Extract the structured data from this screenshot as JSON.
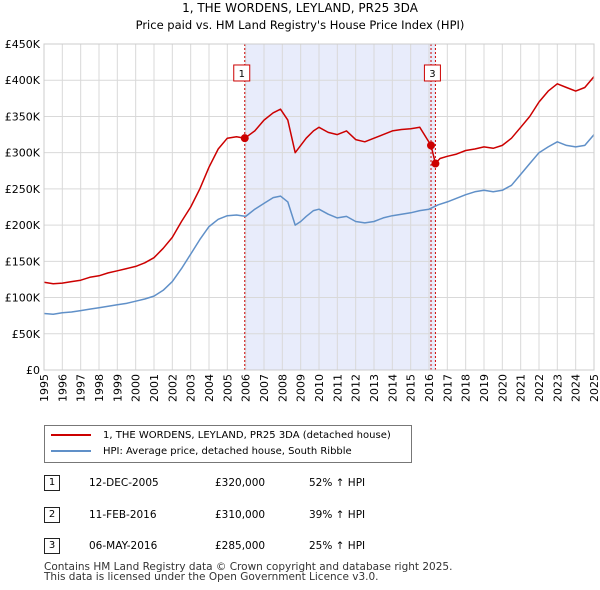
{
  "chart_data": {
    "type": "line",
    "title": "1, THE WORDENS, LEYLAND, PR25 3DA",
    "subtitle": "Price paid vs. HM Land Registry's House Price Index (HPI)",
    "xlabel": "",
    "ylabel": "",
    "xlim": [
      1995,
      2025
    ],
    "ylim": [
      0,
      450000
    ],
    "x_ticks": [
      "1995",
      "1996",
      "1997",
      "1998",
      "1999",
      "2000",
      "2001",
      "2002",
      "2003",
      "2004",
      "2005",
      "2006",
      "2007",
      "2008",
      "2009",
      "2010",
      "2011",
      "2012",
      "2013",
      "2014",
      "2015",
      "2016",
      "2017",
      "2018",
      "2019",
      "2020",
      "2021",
      "2022",
      "2023",
      "2024",
      "2025"
    ],
    "y_ticks": [
      {
        "value": 0,
        "label": "£0"
      },
      {
        "value": 50000,
        "label": "£50K"
      },
      {
        "value": 100000,
        "label": "£100K"
      },
      {
        "value": 150000,
        "label": "£150K"
      },
      {
        "value": 200000,
        "label": "£200K"
      },
      {
        "value": 250000,
        "label": "£250K"
      },
      {
        "value": 300000,
        "label": "£300K"
      },
      {
        "value": 350000,
        "label": "£350K"
      },
      {
        "value": 400000,
        "label": "£400K"
      },
      {
        "value": 450000,
        "label": "£450K"
      }
    ],
    "grid": true,
    "shaded_range": [
      2005.95,
      2016.35
    ],
    "series": [
      {
        "name": "1, THE WORDENS, LEYLAND, PR25 3DA (detached house)",
        "color": "#cc0000",
        "x": [
          1995.0,
          1995.5,
          1996.0,
          1996.5,
          1997.0,
          1997.5,
          1998.0,
          1998.5,
          1999.0,
          1999.5,
          2000.0,
          2000.5,
          2001.0,
          2001.5,
          2002.0,
          2002.5,
          2003.0,
          2003.5,
          2004.0,
          2004.5,
          2005.0,
          2005.5,
          2005.95,
          2006.5,
          2007.0,
          2007.5,
          2007.9,
          2008.3,
          2008.7,
          2009.0,
          2009.3,
          2009.7,
          2010.0,
          2010.5,
          2011.0,
          2011.5,
          2012.0,
          2012.5,
          2013.0,
          2013.5,
          2014.0,
          2014.5,
          2015.0,
          2015.5,
          2016.11,
          2016.35,
          2016.6,
          2017.0,
          2017.5,
          2018.0,
          2018.5,
          2019.0,
          2019.5,
          2020.0,
          2020.5,
          2021.0,
          2021.5,
          2022.0,
          2022.5,
          2023.0,
          2023.5,
          2024.0,
          2024.5,
          2025.0
        ],
        "y": [
          121000,
          119000,
          120000,
          122000,
          124000,
          128000,
          130000,
          134000,
          137000,
          140000,
          143000,
          148000,
          155000,
          168000,
          183000,
          205000,
          225000,
          250000,
          280000,
          305000,
          320000,
          322000,
          320000,
          330000,
          345000,
          355000,
          360000,
          345000,
          300000,
          310000,
          320000,
          330000,
          335000,
          328000,
          325000,
          330000,
          318000,
          315000,
          320000,
          325000,
          330000,
          332000,
          333000,
          335000,
          310000,
          285000,
          292000,
          295000,
          298000,
          303000,
          305000,
          308000,
          306000,
          310000,
          320000,
          335000,
          350000,
          370000,
          385000,
          395000,
          390000,
          385000,
          390000,
          405000
        ]
      },
      {
        "name": "HPI: Average price, detached house, South Ribble",
        "color": "#6090c8",
        "x": [
          1995.0,
          1995.5,
          1996.0,
          1996.5,
          1997.0,
          1997.5,
          1998.0,
          1998.5,
          1999.0,
          1999.5,
          2000.0,
          2000.5,
          2001.0,
          2001.5,
          2002.0,
          2002.5,
          2003.0,
          2003.5,
          2004.0,
          2004.5,
          2005.0,
          2005.5,
          2006.0,
          2006.5,
          2007.0,
          2007.5,
          2007.9,
          2008.3,
          2008.7,
          2009.0,
          2009.3,
          2009.7,
          2010.0,
          2010.5,
          2011.0,
          2011.5,
          2012.0,
          2012.5,
          2013.0,
          2013.5,
          2014.0,
          2014.5,
          2015.0,
          2015.5,
          2016.0,
          2016.5,
          2017.0,
          2017.5,
          2018.0,
          2018.5,
          2019.0,
          2019.5,
          2020.0,
          2020.5,
          2021.0,
          2021.5,
          2022.0,
          2022.5,
          2023.0,
          2023.5,
          2024.0,
          2024.5,
          2025.0
        ],
        "y": [
          78000,
          77000,
          79000,
          80000,
          82000,
          84000,
          86000,
          88000,
          90000,
          92000,
          95000,
          98000,
          102000,
          110000,
          122000,
          140000,
          160000,
          180000,
          198000,
          208000,
          213000,
          214000,
          212000,
          222000,
          230000,
          238000,
          240000,
          232000,
          200000,
          205000,
          212000,
          220000,
          222000,
          215000,
          210000,
          212000,
          205000,
          203000,
          205000,
          210000,
          213000,
          215000,
          217000,
          220000,
          222000,
          228000,
          232000,
          237000,
          242000,
          246000,
          248000,
          246000,
          248000,
          255000,
          270000,
          285000,
          300000,
          308000,
          315000,
          310000,
          308000,
          310000,
          325000
        ]
      }
    ],
    "markers": [
      {
        "label": "1",
        "x": 2005.95,
        "y": 320000,
        "label_y": 410000
      },
      {
        "label": "2",
        "x": 2016.11,
        "y": 310000,
        "label_y": null
      },
      {
        "label": "3",
        "x": 2016.35,
        "y": 285000,
        "label_y": 410000
      }
    ]
  },
  "legend": {
    "items": [
      {
        "label": "1, THE WORDENS, LEYLAND, PR25 3DA (detached house)",
        "color": "#cc0000"
      },
      {
        "label": "HPI: Average price, detached house, South Ribble",
        "color": "#6090c8"
      }
    ]
  },
  "transactions": [
    {
      "num": "1",
      "date": "12-DEC-2005",
      "price": "£320,000",
      "hpi": "52% ↑ HPI"
    },
    {
      "num": "2",
      "date": "11-FEB-2016",
      "price": "£310,000",
      "hpi": "39% ↑ HPI"
    },
    {
      "num": "3",
      "date": "06-MAY-2016",
      "price": "£285,000",
      "hpi": "25% ↑ HPI"
    }
  ],
  "footer": {
    "line1": "Contains HM Land Registry data © Crown copyright and database right 2025.",
    "line2": "This data is licensed under the Open Government Licence v3.0."
  }
}
